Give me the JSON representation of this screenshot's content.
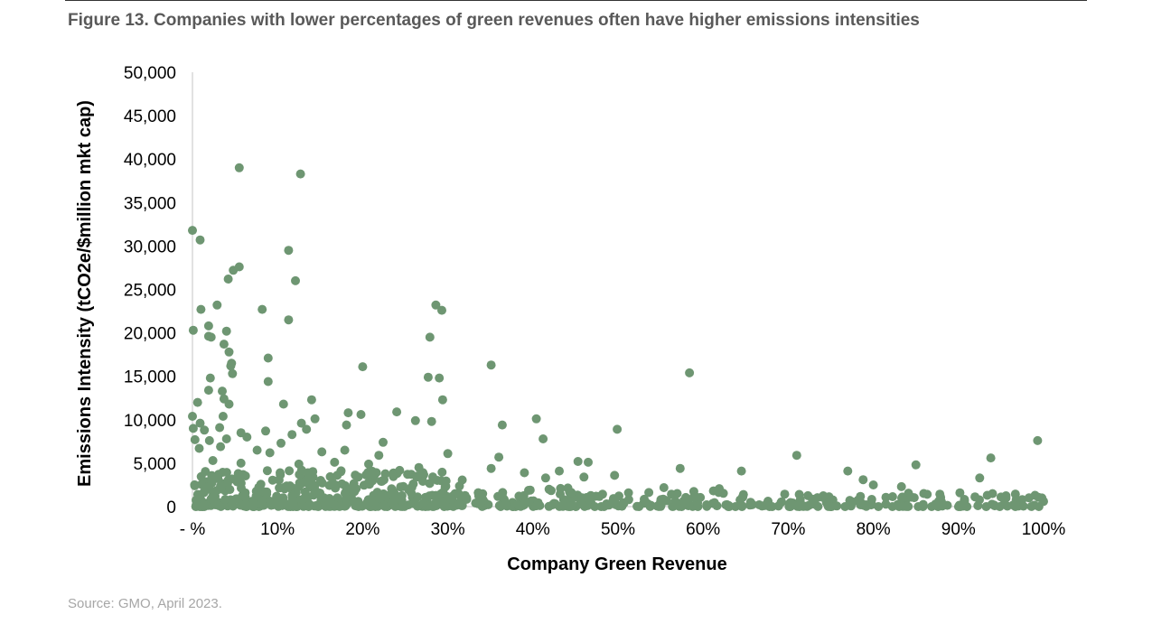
{
  "figure": {
    "title": "Figure 13. Companies with lower percentages of green revenues often have higher emissions intensities",
    "source": "Source: GMO, April 2023."
  },
  "chart_data": {
    "type": "scatter",
    "title": "Figure 13. Companies with lower percentages of green revenues often have higher emissions intensities",
    "xlabel": "Company Green Revenue",
    "ylabel": "Emissions Intensity (tCO2e/$million mkt cap)",
    "xlim": [
      0,
      100
    ],
    "ylim": [
      0,
      50000
    ],
    "x_ticks": [
      {
        "value": 0,
        "label": "-  %"
      },
      {
        "value": 10,
        "label": "10%"
      },
      {
        "value": 20,
        "label": "20%"
      },
      {
        "value": 30,
        "label": "30%"
      },
      {
        "value": 40,
        "label": "40%"
      },
      {
        "value": 50,
        "label": "50%"
      },
      {
        "value": 60,
        "label": "60%"
      },
      {
        "value": 70,
        "label": "70%"
      },
      {
        "value": 80,
        "label": "80%"
      },
      {
        "value": 90,
        "label": "90%"
      },
      {
        "value": 100,
        "label": "100%"
      }
    ],
    "y_ticks": [
      {
        "value": 0,
        "label": "0"
      },
      {
        "value": 5000,
        "label": "5,000"
      },
      {
        "value": 10000,
        "label": "10,000"
      },
      {
        "value": 15000,
        "label": "15,000"
      },
      {
        "value": 20000,
        "label": "20,000"
      },
      {
        "value": 25000,
        "label": "25,000"
      },
      {
        "value": 30000,
        "label": "30,000"
      },
      {
        "value": 35000,
        "label": "35,000"
      },
      {
        "value": 40000,
        "label": "40,000"
      },
      {
        "value": 45000,
        "label": "45,000"
      },
      {
        "value": 50000,
        "label": "50,000"
      }
    ],
    "grid": false,
    "marker_color": "#6e9672",
    "axis_color": "#d9d9d9",
    "points": [
      [
        0,
        31800
      ],
      [
        0.9,
        30700
      ],
      [
        5.5,
        39000
      ],
      [
        12.7,
        38300
      ],
      [
        11.3,
        29500
      ],
      [
        5.5,
        27600
      ],
      [
        4.8,
        27200
      ],
      [
        4.2,
        26200
      ],
      [
        12.1,
        26000
      ],
      [
        2.9,
        23200
      ],
      [
        1,
        22700
      ],
      [
        8.2,
        22700
      ],
      [
        28.6,
        23200
      ],
      [
        29.3,
        22600
      ],
      [
        0.1,
        20300
      ],
      [
        1.9,
        20800
      ],
      [
        4,
        20200
      ],
      [
        11.3,
        21500
      ],
      [
        1.9,
        19600
      ],
      [
        2.2,
        19500
      ],
      [
        27.9,
        19500
      ],
      [
        3.7,
        18700
      ],
      [
        4.3,
        17800
      ],
      [
        8.9,
        17100
      ],
      [
        4.6,
        16500
      ],
      [
        4.5,
        16200
      ],
      [
        20,
        16100
      ],
      [
        35.1,
        16300
      ],
      [
        4.7,
        15300
      ],
      [
        2.1,
        14800
      ],
      [
        8.9,
        14400
      ],
      [
        27.7,
        14900
      ],
      [
        29,
        14800
      ],
      [
        58.4,
        15400
      ],
      [
        1.9,
        13400
      ],
      [
        3.5,
        13300
      ],
      [
        3.7,
        12400
      ],
      [
        0.6,
        12000
      ],
      [
        4.3,
        11800
      ],
      [
        10.7,
        11800
      ],
      [
        14,
        12300
      ],
      [
        29.4,
        12300
      ],
      [
        0,
        10400
      ],
      [
        0.9,
        9600
      ],
      [
        3.6,
        10400
      ],
      [
        12.8,
        9600
      ],
      [
        14.4,
        10100
      ],
      [
        18.3,
        10800
      ],
      [
        19.8,
        10600
      ],
      [
        24,
        10900
      ],
      [
        26.2,
        9900
      ],
      [
        28.1,
        9800
      ],
      [
        36.4,
        9400
      ],
      [
        40.4,
        10100
      ],
      [
        0.1,
        9000
      ],
      [
        1.4,
        8800
      ],
      [
        3.2,
        9100
      ],
      [
        5.7,
        8500
      ],
      [
        8.6,
        8700
      ],
      [
        11.7,
        8300
      ],
      [
        13.4,
        8900
      ],
      [
        18.1,
        9400
      ],
      [
        49.9,
        8900
      ],
      [
        0.3,
        7700
      ],
      [
        2,
        7600
      ],
      [
        4,
        7800
      ],
      [
        6.4,
        8000
      ],
      [
        10.4,
        7300
      ],
      [
        22.4,
        7400
      ],
      [
        41.2,
        7800
      ],
      [
        99.3,
        7600
      ],
      [
        0.8,
        6700
      ],
      [
        3.3,
        6900
      ],
      [
        7.6,
        6500
      ],
      [
        9.1,
        6200
      ],
      [
        15.2,
        6300
      ],
      [
        17.9,
        6500
      ],
      [
        21.9,
        5900
      ],
      [
        30,
        6100
      ],
      [
        36,
        5700
      ],
      [
        45.3,
        5200
      ],
      [
        46.5,
        5100
      ],
      [
        71,
        5900
      ],
      [
        85,
        4800
      ],
      [
        93.8,
        5600
      ],
      [
        2.4,
        5300
      ],
      [
        5.7,
        5000
      ],
      [
        12.5,
        4900
      ],
      [
        16.7,
        5100
      ],
      [
        20.7,
        4900
      ],
      [
        26.6,
        4500
      ],
      [
        35.1,
        4400
      ],
      [
        39,
        3900
      ],
      [
        41.5,
        3300
      ],
      [
        43.1,
        4100
      ],
      [
        46,
        3400
      ],
      [
        49.6,
        3600
      ],
      [
        57.3,
        4400
      ],
      [
        64.5,
        4100
      ],
      [
        77,
        4100
      ],
      [
        78.8,
        3100
      ],
      [
        80,
        2500
      ],
      [
        83.3,
        2300
      ],
      [
        92.5,
        3300
      ],
      [
        94,
        1500
      ],
      [
        97.5,
        800
      ],
      [
        99,
        1300
      ],
      [
        99.8,
        1000
      ],
      [
        100,
        600
      ],
      [
        95,
        1100
      ]
    ]
  }
}
